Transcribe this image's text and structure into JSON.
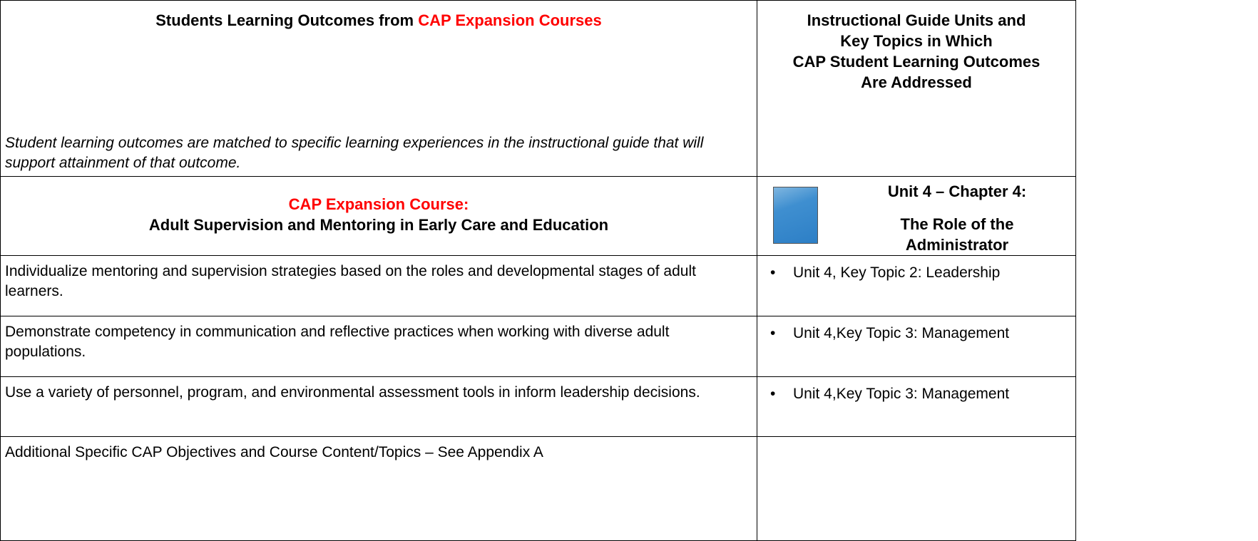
{
  "header": {
    "left_title": "Students Learning Outcomes from ",
    "left_title_highlight": "CAP Expansion Courses",
    "left_note": "Student learning outcomes are matched to specific learning experiences in the instructional guide that will support attainment of that outcome.",
    "right_title_lines": [
      "Instructional Guide Units and",
      "Key Topics in Which",
      "CAP Student Learning Outcomes",
      "Are Addressed"
    ]
  },
  "course": {
    "label": "CAP Expansion Course:",
    "name": "Adult Supervision and Mentoring in Early Care and Education",
    "unit": "Unit 4 – Chapter 4:",
    "unit_title": "The Role of the Administrator"
  },
  "rows": [
    {
      "outcome": "Individualize mentoring and supervision strategies based on the roles and developmental stages of adult learners.",
      "topic": "Unit 4, Key Topic 2: Leadership"
    },
    {
      "outcome": "Demonstrate competency in communication and reflective practices when working with diverse adult populations.",
      "topic": "Unit 4,Key Topic 3: Management"
    },
    {
      "outcome": "Use a variety of personnel, program, and environmental assessment tools in inform leadership decisions.",
      "topic": "Unit 4,Key Topic 3: Management"
    },
    {
      "outcome": "Additional Specific CAP Objectives and Course Content/Topics – See Appendix A"
    }
  ]
}
